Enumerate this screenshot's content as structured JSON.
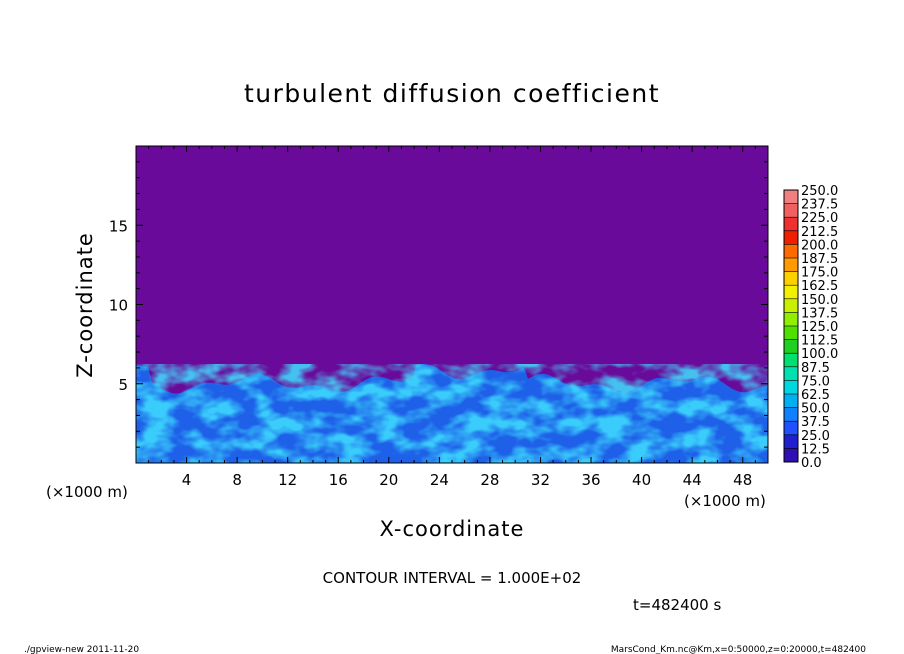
{
  "chart_data": {
    "type": "heatmap",
    "title": "turbulent diffusion coefficient",
    "xlabel": "X-coordinate",
    "ylabel": "Z-coordinate",
    "x_unit": "(×1000 m)",
    "y_unit": "(×1000 m)",
    "xlim": [
      0,
      50
    ],
    "ylim": [
      0,
      20
    ],
    "x_ticks": [
      4,
      8,
      12,
      16,
      20,
      24,
      28,
      32,
      36,
      40,
      44,
      48
    ],
    "y_ticks": [
      5,
      10,
      15
    ],
    "colorbar": {
      "levels": [
        "250.0",
        "237.5",
        "225.0",
        "212.5",
        "200.0",
        "187.5",
        "175.0",
        "162.5",
        "150.0",
        "137.5",
        "125.0",
        "112.5",
        "100.0",
        "87.5",
        "75.0",
        "62.5",
        "50.0",
        "37.5",
        "25.0",
        "12.5",
        "0.0"
      ],
      "colors": [
        "#f08080",
        "#f06060",
        "#ee3030",
        "#ee2000",
        "#ff6a00",
        "#ff9a00",
        "#ffd000",
        "#f0f000",
        "#c8f000",
        "#90ee00",
        "#50e000",
        "#20d020",
        "#00e070",
        "#00e0b0",
        "#00d8e0",
        "#00b0f0",
        "#1080ff",
        "#2050ff",
        "#2020d0",
        "#3010b0"
      ]
    },
    "boundary_layer_top_km": 5,
    "background_color": "#6a0a9a",
    "contour_interval": "CONTOUR INTERVAL = 1.000E+02",
    "time": "t=482400 s"
  },
  "footer": {
    "left": "./gpview-new   2011-11-20",
    "right": "MarsCond_Km.nc@Km,x=0:50000,z=0:20000,t=482400"
  }
}
